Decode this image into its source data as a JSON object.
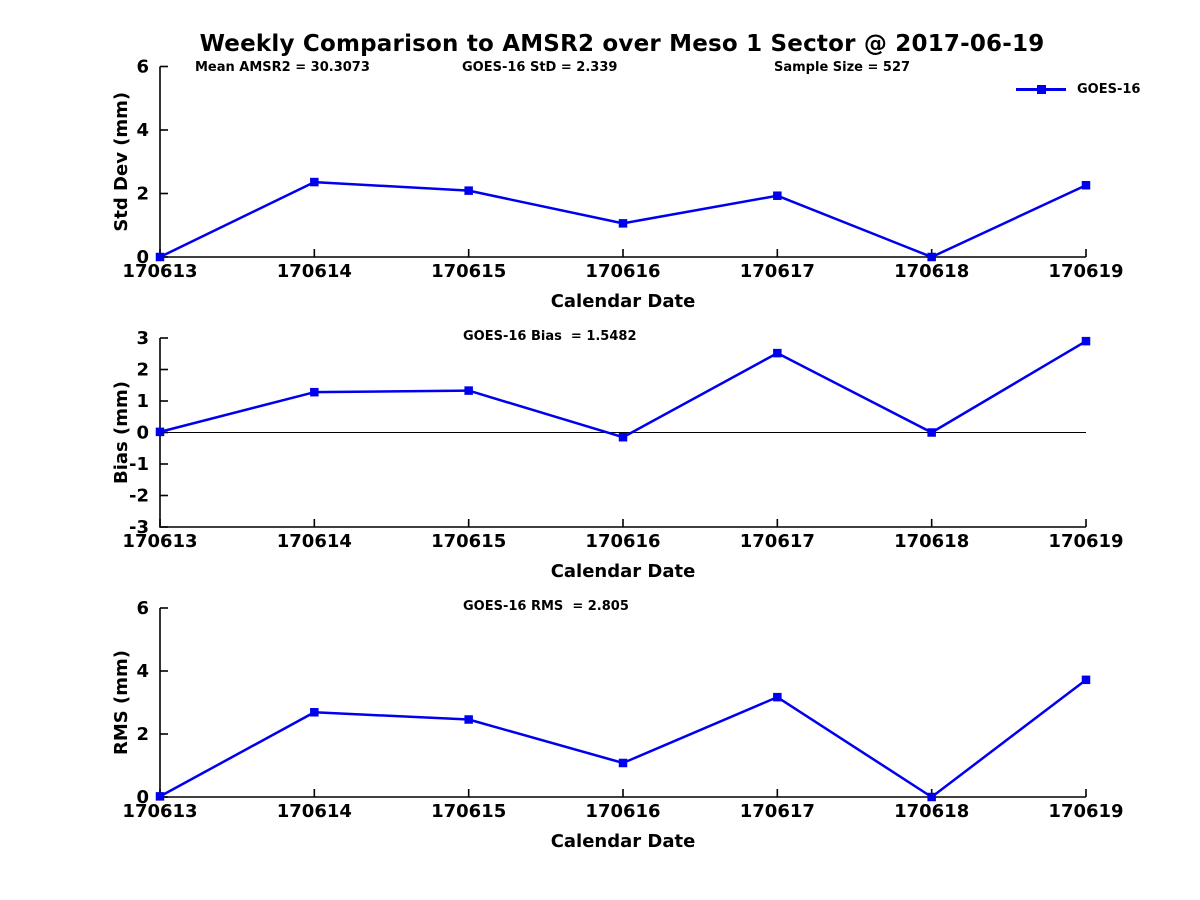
{
  "title": "Weekly Comparison to AMSR2 over Meso 1 Sector @ 2017-06-19",
  "colors": {
    "line": "#0000EE",
    "text": "#000000",
    "axis": "#000000",
    "background": "#ffffff"
  },
  "legend": {
    "label": "GOES-16",
    "position": "upper right",
    "marker": "filled-square"
  },
  "chart_data": [
    {
      "type": "line",
      "name": "std-dev-panel",
      "title": "Weekly Comparison to AMSR2 over Meso 1 Sector @ 2017-06-19",
      "annotations": [
        "Mean AMSR2 = 30.3073",
        "GOES-16 StD = 2.339",
        "Sample Size = 527"
      ],
      "categories": [
        "170613",
        "170614",
        "170615",
        "170616",
        "170617",
        "170618",
        "170619"
      ],
      "series": [
        {
          "name": "GOES-16",
          "values": [
            0.0,
            2.36,
            2.09,
            1.06,
            1.93,
            0.0,
            2.26
          ]
        }
      ],
      "xlabel": "Calendar Date",
      "ylabel": "Std Dev (mm)",
      "ylim": [
        0,
        6
      ],
      "yticks": [
        0,
        2,
        4,
        6
      ],
      "grid": false,
      "marker": "square"
    },
    {
      "type": "line",
      "name": "bias-panel",
      "annotation": "GOES-16 Bias  = 1.5482",
      "categories": [
        "170613",
        "170614",
        "170615",
        "170616",
        "170617",
        "170618",
        "170619"
      ],
      "series": [
        {
          "name": "GOES-16",
          "values": [
            0.02,
            1.28,
            1.33,
            -0.15,
            2.52,
            0.0,
            2.9
          ]
        }
      ],
      "xlabel": "Calendar Date",
      "ylabel": "Bias (mm)",
      "ylim": [
        -3,
        3
      ],
      "yticks": [
        -3,
        -2,
        -1,
        0,
        1,
        2,
        3
      ],
      "zero_line": true,
      "grid": false,
      "marker": "square"
    },
    {
      "type": "line",
      "name": "rms-panel",
      "annotation": "GOES-16 RMS  = 2.805",
      "categories": [
        "170613",
        "170614",
        "170615",
        "170616",
        "170617",
        "170618",
        "170619"
      ],
      "series": [
        {
          "name": "GOES-16",
          "values": [
            0.02,
            2.69,
            2.46,
            1.08,
            3.17,
            0.0,
            3.72
          ]
        }
      ],
      "xlabel": "Calendar Date",
      "ylabel": "RMS (mm)",
      "ylim": [
        0,
        6
      ],
      "yticks": [
        0,
        2,
        4,
        6
      ],
      "grid": false,
      "marker": "square"
    }
  ]
}
